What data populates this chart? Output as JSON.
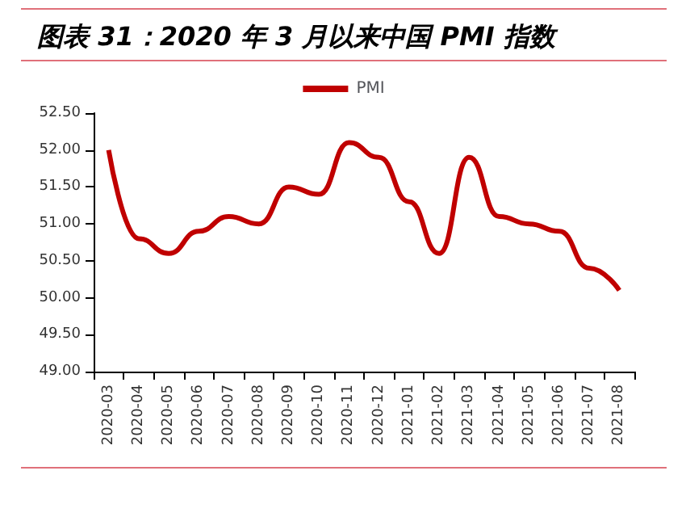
{
  "chart_data": {
    "type": "line",
    "title": "图表 31：2020 年 3 月以来中国 PMI 指数",
    "categories": [
      "2020-03",
      "2020-04",
      "2020-05",
      "2020-06",
      "2020-07",
      "2020-08",
      "2020-09",
      "2020-10",
      "2020-11",
      "2020-12",
      "2021-01",
      "2021-02",
      "2021-03",
      "2021-04",
      "2021-05",
      "2021-06",
      "2021-07",
      "2021-08"
    ],
    "series": [
      {
        "name": "PMI",
        "color": "#c00000",
        "values": [
          52.0,
          50.8,
          50.6,
          50.9,
          51.1,
          51.0,
          51.5,
          51.4,
          52.1,
          51.9,
          51.3,
          50.6,
          51.9,
          51.1,
          51.0,
          50.9,
          50.4,
          50.1
        ]
      }
    ],
    "ylim": [
      49,
      52.5
    ],
    "yticks": [
      {
        "value": 49,
        "label": "49.00"
      },
      {
        "value": 49.5,
        "label": "49.50"
      },
      {
        "value": 50,
        "label": "50.00"
      },
      {
        "value": 50.5,
        "label": "50.50"
      },
      {
        "value": 51,
        "label": "51.00"
      },
      {
        "value": 51.5,
        "label": "51.50"
      },
      {
        "value": 52,
        "label": "52.00"
      },
      {
        "value": 52.5,
        "label": "52.50"
      }
    ],
    "grid": false,
    "legend": "top",
    "marker": "none",
    "line_style": "solid"
  }
}
